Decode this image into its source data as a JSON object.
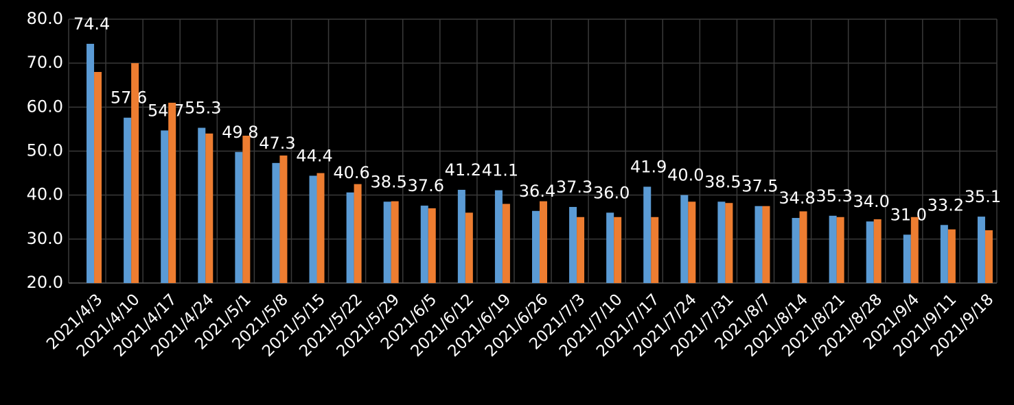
{
  "chart_data": {
    "type": "bar",
    "categories": [
      "2021/4/3",
      "2021/4/10",
      "2021/4/17",
      "2021/4/24",
      "2021/5/1",
      "2021/5/8",
      "2021/5/15",
      "2021/5/22",
      "2021/5/29",
      "2021/6/5",
      "2021/6/12",
      "2021/6/19",
      "2021/6/26",
      "2021/7/3",
      "2021/7/10",
      "2021/7/17",
      "2021/7/24",
      "2021/7/31",
      "2021/8/7",
      "2021/8/14",
      "2021/8/21",
      "2021/8/28",
      "2021/9/4",
      "2021/9/11",
      "2021/9/18"
    ],
    "series": [
      {
        "color": "#5b9bd5",
        "values": [
          74.4,
          57.6,
          54.7,
          55.3,
          49.8,
          47.3,
          44.4,
          40.6,
          38.5,
          37.6,
          41.2,
          41.1,
          36.4,
          37.3,
          36.0,
          41.9,
          40.0,
          38.5,
          37.5,
          34.8,
          35.3,
          34.0,
          31.0,
          33.2,
          35.1
        ],
        "value_labels": [
          "74.4",
          "57.6",
          "54.7",
          "55.3",
          "49.8",
          "47.3",
          "44.4",
          "40.6",
          "38.5",
          "37.6",
          "41.2",
          "41.1",
          "36.4",
          "37.3",
          "36.0",
          "41.9",
          "40.0",
          "38.5",
          "37.5",
          "34.8",
          "35.3",
          "34.0",
          "31.0",
          "33.2",
          "35.1"
        ]
      },
      {
        "color": "#ed7d31",
        "values": [
          68.0,
          70.0,
          61.0,
          54.0,
          53.5,
          49.0,
          45.0,
          42.5,
          38.6,
          37.0,
          36.0,
          38.0,
          38.6,
          35.0,
          35.0,
          35.0,
          38.5,
          38.2,
          37.5,
          36.3,
          35.0,
          34.5,
          35.0,
          32.2,
          32.0
        ]
      }
    ],
    "ylim": [
      20,
      80
    ],
    "yticks": [
      {
        "value": 20,
        "label": "20.0"
      },
      {
        "value": 30,
        "label": "30.0"
      },
      {
        "value": 40,
        "label": "40.0"
      },
      {
        "value": 50,
        "label": "50.0"
      },
      {
        "value": 60,
        "label": "60.0"
      },
      {
        "value": 70,
        "label": "70.0"
      },
      {
        "value": 80,
        "label": "80.0"
      }
    ],
    "grid": true
  }
}
